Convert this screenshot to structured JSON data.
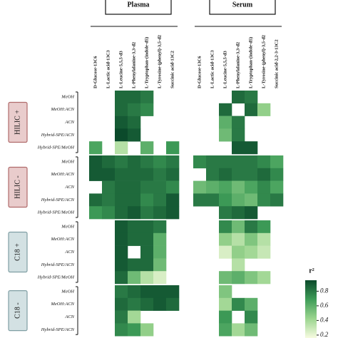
{
  "chart_data": {
    "type": "heatmap",
    "colorscale": [
      "#f7fbe1",
      "#9bd58f",
      "#3f9d58",
      "#0b4a2b"
    ],
    "zlim": [
      0.16,
      0.95
    ],
    "zticks": [
      0.2,
      0.4,
      0.6,
      0.8
    ],
    "colorbar_label": "r²",
    "row_groups": [
      {
        "name": "HILIC +",
        "color": "#e9cccc",
        "border": "#b06a6a",
        "rows": [
          "MeOH",
          "MeOH:ACN",
          "ACN",
          "Hybrid-SPE/ACN",
          "Hybrid-SPE/MeOH"
        ]
      },
      {
        "name": "HILIC -",
        "color": "#e9cccc",
        "border": "#b06a6a",
        "rows": [
          "MeOH",
          "MeOH:ACN",
          "ACN",
          "Hybrid-SPE/ACN",
          "Hybrid-SPE/MeOH"
        ]
      },
      {
        "name": "C18 +",
        "color": "#d3e1e3",
        "border": "#7f9ea3",
        "rows": [
          "MeOH",
          "MeOH:ACN",
          "ACN",
          "Hybrid-SPE/ACN",
          "Hybrid-SPE/MeOH"
        ]
      },
      {
        "name": "C18 -",
        "color": "#d3e1e3",
        "border": "#7f9ea3",
        "rows": [
          "MeOH",
          "MeOH:ACN",
          "ACN",
          "Hybrid-SPE/ACN"
        ]
      }
    ],
    "panels": [
      {
        "title": "Plasma",
        "columns": [
          "D-Glucose-13C6",
          "L-Lactic acid-13C3",
          "L-Leucine-5,5,5-d3",
          "L-Phenylalanine-3,3-d2",
          "L-Tryptophan-(indole-d5)",
          "L-Tyrosine-(phenyl)-3,5-d2",
          "Succinic acid-13C2"
        ],
        "values": [
          [
            null,
            null,
            0.85,
            0.85,
            0.8,
            null,
            null
          ],
          [
            null,
            null,
            0.85,
            0.8,
            0.75,
            null,
            null
          ],
          [
            null,
            null,
            0.9,
            0.85,
            null,
            null,
            null
          ],
          [
            null,
            null,
            0.95,
            0.9,
            null,
            null,
            null
          ],
          [
            0.65,
            null,
            0.35,
            null,
            0.6,
            null,
            0.7
          ],
          [
            0.9,
            0.85,
            0.8,
            0.85,
            0.8,
            0.75,
            0.8
          ],
          [
            0.9,
            0.9,
            0.85,
            0.85,
            0.85,
            0.8,
            0.85
          ],
          [
            null,
            0.8,
            0.85,
            0.85,
            0.8,
            0.8,
            0.75
          ],
          [
            0.85,
            0.8,
            0.85,
            0.85,
            0.75,
            0.8,
            0.9
          ],
          [
            0.7,
            0.75,
            0.85,
            0.9,
            0.8,
            0.85,
            0.9
          ],
          [
            null,
            null,
            0.9,
            0.85,
            0.85,
            0.8,
            null
          ],
          [
            null,
            null,
            0.9,
            0.85,
            0.85,
            0.6,
            null
          ],
          [
            null,
            null,
            0.9,
            null,
            0.85,
            0.6,
            null
          ],
          [
            null,
            null,
            0.9,
            0.85,
            0.85,
            0.55,
            null
          ],
          [
            null,
            null,
            0.85,
            0.55,
            0.35,
            0.25,
            null
          ],
          [
            null,
            null,
            0.8,
            0.85,
            0.9,
            0.9,
            0.9
          ],
          [
            null,
            null,
            0.85,
            0.8,
            0.85,
            0.9,
            0.85
          ],
          [
            null,
            null,
            0.8,
            0.4,
            null,
            null,
            null
          ],
          [
            null,
            null,
            0.75,
            0.7,
            0.45,
            null,
            null
          ]
        ]
      },
      {
        "title": "Serum",
        "columns": [
          "D-Glucose-13C6",
          "L-Lactic acid-13C3",
          "L-Leucine-5,5,5-d3",
          "L-Phenylalanine-3,3-d2",
          "L-Tryptophan-(indole-d5)",
          "L-Tyrosine-(phenyl)-3,5-d2",
          "Succinic acid-2,2-3-13C2"
        ],
        "values": [
          [
            null,
            null,
            null,
            0.85,
            0.8,
            null,
            null
          ],
          [
            null,
            null,
            0.85,
            null,
            0.85,
            0.45,
            null
          ],
          [
            null,
            null,
            0.6,
            0.8,
            null,
            null,
            null
          ],
          [
            null,
            null,
            0.55,
            0.8,
            null,
            null,
            null
          ],
          [
            null,
            null,
            null,
            0.9,
            0.9,
            null,
            null
          ],
          [
            0.75,
            0.8,
            0.8,
            0.8,
            0.8,
            0.75,
            0.65
          ],
          [
            null,
            0.8,
            0.85,
            0.8,
            0.8,
            0.85,
            0.75
          ],
          [
            0.55,
            0.6,
            0.65,
            0.55,
            0.65,
            0.75,
            0.65
          ],
          [
            0.8,
            0.8,
            0.7,
            0.6,
            0.55,
            0.75,
            0.8
          ],
          [
            null,
            null,
            0.8,
            0.85,
            0.9,
            null,
            null
          ],
          [
            null,
            null,
            0.75,
            0.55,
            0.8,
            0.7,
            null
          ],
          [
            null,
            null,
            0.45,
            0.35,
            0.5,
            0.35,
            null
          ],
          [
            null,
            null,
            0.25,
            0.45,
            0.4,
            0.3,
            null
          ],
          [
            null,
            null,
            null,
            0.35,
            null,
            null,
            null
          ],
          [
            null,
            null,
            0.55,
            0.6,
            0.5,
            0.4,
            null
          ],
          [
            null,
            null,
            0.5,
            null,
            null,
            null,
            null
          ],
          [
            null,
            null,
            0.4,
            0.75,
            0.6,
            null,
            null
          ],
          [
            null,
            null,
            0.7,
            null,
            0.75,
            null,
            null
          ],
          [
            null,
            null,
            0.65,
            0.4,
            0.55,
            null,
            null
          ]
        ]
      }
    ]
  }
}
